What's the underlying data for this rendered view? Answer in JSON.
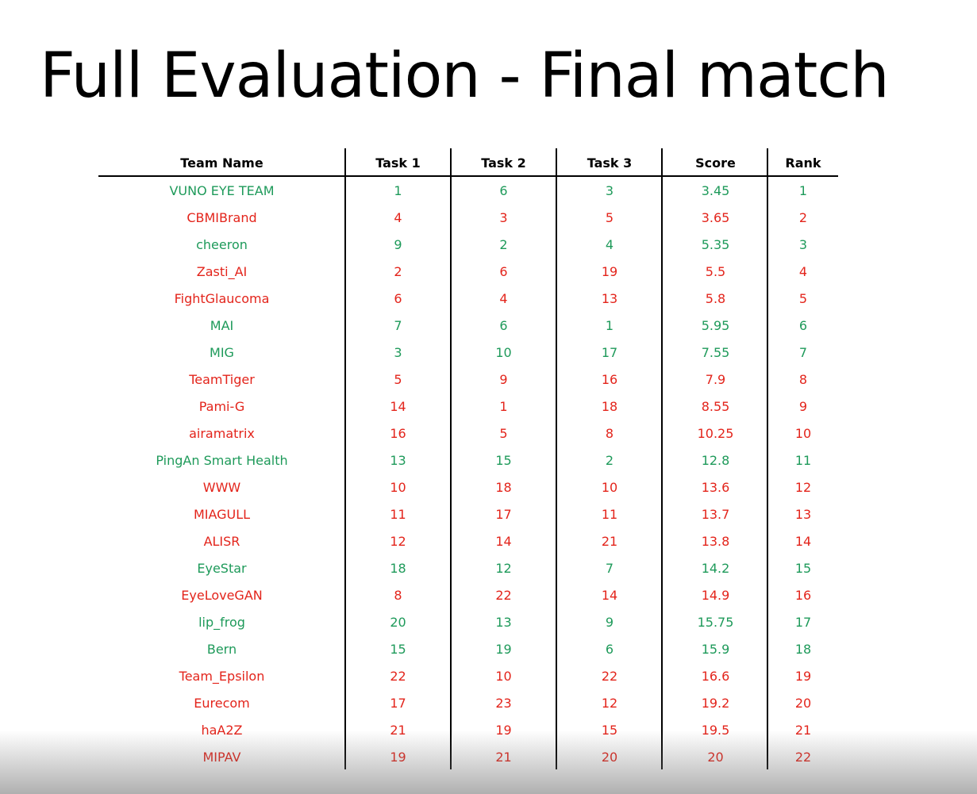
{
  "title": "Full Evaluation - Final match",
  "colors": {
    "green": "#1e9a5a",
    "red": "#e3241b"
  },
  "columns": [
    "Team Name",
    "Task 1",
    "Task 2",
    "Task 3",
    "Score",
    "Rank"
  ],
  "rows": [
    {
      "team": "VUNO EYE TEAM",
      "t1": "1",
      "t2": "6",
      "t3": "3",
      "score": "3.45",
      "rank": "1",
      "color": "green"
    },
    {
      "team": "CBMIBrand",
      "t1": "4",
      "t2": "3",
      "t3": "5",
      "score": "3.65",
      "rank": "2",
      "color": "red"
    },
    {
      "team": "cheeron",
      "t1": "9",
      "t2": "2",
      "t3": "4",
      "score": "5.35",
      "rank": "3",
      "color": "green"
    },
    {
      "team": "Zasti_AI",
      "t1": "2",
      "t2": "6",
      "t3": "19",
      "score": "5.5",
      "rank": "4",
      "color": "red"
    },
    {
      "team": "FightGlaucoma",
      "t1": "6",
      "t2": "4",
      "t3": "13",
      "score": "5.8",
      "rank": "5",
      "color": "red"
    },
    {
      "team": "MAI",
      "t1": "7",
      "t2": "6",
      "t3": "1",
      "score": "5.95",
      "rank": "6",
      "color": "green"
    },
    {
      "team": "MIG",
      "t1": "3",
      "t2": "10",
      "t3": "17",
      "score": "7.55",
      "rank": "7",
      "color": "green"
    },
    {
      "team": "TeamTiger",
      "t1": "5",
      "t2": "9",
      "t3": "16",
      "score": "7.9",
      "rank": "8",
      "color": "red"
    },
    {
      "team": "Pami-G",
      "t1": "14",
      "t2": "1",
      "t3": "18",
      "score": "8.55",
      "rank": "9",
      "color": "red"
    },
    {
      "team": "airamatrix",
      "t1": "16",
      "t2": "5",
      "t3": "8",
      "score": "10.25",
      "rank": "10",
      "color": "red"
    },
    {
      "team": "PingAn Smart Health",
      "t1": "13",
      "t2": "15",
      "t3": "2",
      "score": "12.8",
      "rank": "11",
      "color": "green"
    },
    {
      "team": "WWW",
      "t1": "10",
      "t2": "18",
      "t3": "10",
      "score": "13.6",
      "rank": "12",
      "color": "red"
    },
    {
      "team": "MIAGULL",
      "t1": "11",
      "t2": "17",
      "t3": "11",
      "score": "13.7",
      "rank": "13",
      "color": "red"
    },
    {
      "team": "ALISR",
      "t1": "12",
      "t2": "14",
      "t3": "21",
      "score": "13.8",
      "rank": "14",
      "color": "red"
    },
    {
      "team": "EyeStar",
      "t1": "18",
      "t2": "12",
      "t3": "7",
      "score": "14.2",
      "rank": "15",
      "color": "green"
    },
    {
      "team": "EyeLoveGAN",
      "t1": "8",
      "t2": "22",
      "t3": "14",
      "score": "14.9",
      "rank": "16",
      "color": "red"
    },
    {
      "team": "lip_frog",
      "t1": "20",
      "t2": "13",
      "t3": "9",
      "score": "15.75",
      "rank": "17",
      "color": "green"
    },
    {
      "team": "Bern",
      "t1": "15",
      "t2": "19",
      "t3": "6",
      "score": "15.9",
      "rank": "18",
      "color": "green"
    },
    {
      "team": "Team_Epsilon",
      "t1": "22",
      "t2": "10",
      "t3": "22",
      "score": "16.6",
      "rank": "19",
      "color": "red"
    },
    {
      "team": "Eurecom",
      "t1": "17",
      "t2": "23",
      "t3": "12",
      "score": "19.2",
      "rank": "20",
      "color": "red"
    },
    {
      "team": "haA2Z",
      "t1": "21",
      "t2": "19",
      "t3": "15",
      "score": "19.5",
      "rank": "21",
      "color": "red"
    },
    {
      "team": "MIPAV",
      "t1": "19",
      "t2": "21",
      "t3": "20",
      "score": "20",
      "rank": "22",
      "color": "red"
    }
  ]
}
